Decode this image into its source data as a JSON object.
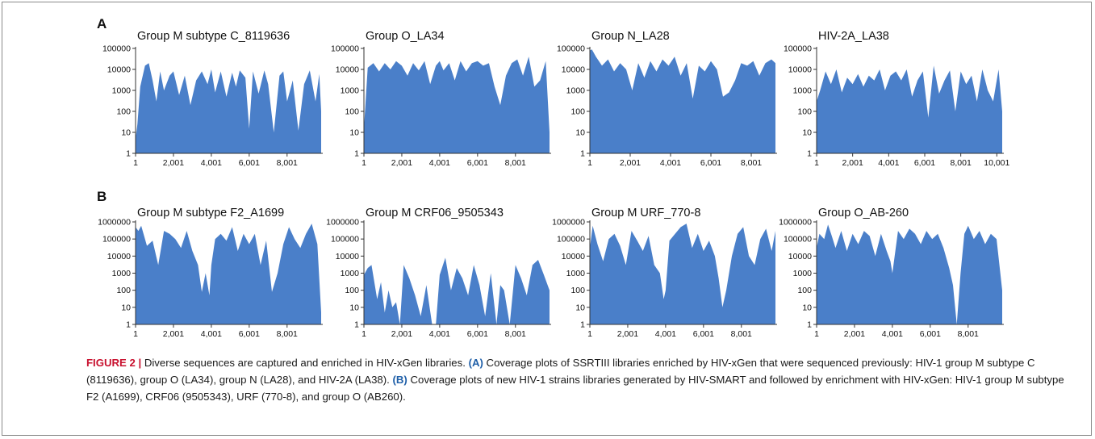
{
  "figure": {
    "caption": {
      "label": "FIGURE 2 |",
      "lead": " Diverse sequences are captured and enriched in HIV-xGen libraries. ",
      "ref_a": "(A)",
      "text_a": " Coverage plots of SSRTIII libraries enriched by HIV-xGen that were sequenced previously: HIV-1 group M subtype C (8119636), group O (LA34), group N (LA28), and HIV-2A (LA38). ",
      "ref_b": "(B)",
      "text_b": " Coverage plots of new HIV-1 strains libraries generated by HIV-SMART and followed by enrichment with HIV-xGen: HIV-1 group M subtype F2 (A1699), CRF06 (9505343), URF (770-8), and group O (AB260)."
    },
    "row_labels": [
      "A",
      "B"
    ]
  },
  "colors": {
    "fill": "#4a7fc9",
    "axis": "#333333",
    "text": "#111111"
  },
  "chart_data": [
    {
      "type": "area",
      "row": 0,
      "panel": "A",
      "title": "Group M subtype C_8119636",
      "yscale": "log",
      "ylim": [
        1,
        100000
      ],
      "yticks": [
        1,
        10,
        100,
        1000,
        10000,
        100000
      ],
      "xlim": [
        1,
        9800
      ],
      "xticks": [
        1,
        2001,
        4001,
        6001,
        8001
      ],
      "xticklabels": [
        "1",
        "2,001",
        "4,001",
        "6,001",
        "8,001"
      ],
      "x": [
        1,
        100,
        250,
        500,
        700,
        900,
        1100,
        1300,
        1500,
        1800,
        2000,
        2300,
        2600,
        2900,
        3200,
        3500,
        3800,
        4000,
        4200,
        4500,
        4800,
        5100,
        5300,
        5500,
        5800,
        6000,
        6200,
        6500,
        6800,
        7000,
        7300,
        7600,
        7800,
        8000,
        8300,
        8600,
        8900,
        9200,
        9500,
        9700,
        9800
      ],
      "y": [
        5,
        25,
        1500,
        15000,
        20000,
        3000,
        300,
        8000,
        1000,
        5000,
        8000,
        600,
        5000,
        200,
        3000,
        8000,
        2000,
        10000,
        800,
        8000,
        500,
        7000,
        1500,
        9000,
        4000,
        15,
        8000,
        700,
        9000,
        2000,
        10,
        5000,
        8000,
        300,
        3000,
        12,
        2000,
        9000,
        300,
        6000,
        100
      ]
    },
    {
      "type": "area",
      "row": 0,
      "panel": "A",
      "title": "Group O_LA34",
      "yscale": "log",
      "ylim": [
        1,
        100000
      ],
      "yticks": [
        1,
        10,
        100,
        1000,
        10000,
        100000
      ],
      "xlim": [
        1,
        9800
      ],
      "xticks": [
        1,
        2001,
        4001,
        6001,
        8001
      ],
      "xticklabels": [
        "1",
        "2,001",
        "4,001",
        "6,001",
        "8,001"
      ],
      "x": [
        1,
        200,
        500,
        800,
        1100,
        1400,
        1700,
        2000,
        2300,
        2600,
        2900,
        3200,
        3500,
        3800,
        4000,
        4200,
        4500,
        4800,
        5100,
        5400,
        5700,
        6000,
        6300,
        6600,
        6900,
        7200,
        7500,
        7800,
        8100,
        8400,
        8700,
        9000,
        9300,
        9600,
        9800
      ],
      "y": [
        15,
        12000,
        20000,
        8000,
        20000,
        10000,
        25000,
        15000,
        5000,
        20000,
        9000,
        25000,
        2000,
        15000,
        25000,
        9000,
        20000,
        3000,
        25000,
        8000,
        20000,
        25000,
        15000,
        20000,
        1500,
        200,
        5000,
        20000,
        30000,
        5000,
        40000,
        1500,
        3000,
        25000,
        10
      ]
    },
    {
      "type": "area",
      "row": 0,
      "panel": "A",
      "title": "Group N_LA28",
      "yscale": "log",
      "ylim": [
        1,
        100000
      ],
      "yticks": [
        1,
        10,
        100,
        1000,
        10000,
        100000
      ],
      "xlim": [
        1,
        9200
      ],
      "xticks": [
        1,
        2001,
        4001,
        6001,
        8001
      ],
      "xticklabels": [
        "1",
        "2,001",
        "4,001",
        "6,001",
        "8,001"
      ],
      "x": [
        1,
        100,
        300,
        600,
        900,
        1200,
        1500,
        1800,
        2100,
        2400,
        2700,
        3000,
        3300,
        3600,
        3900,
        4200,
        4500,
        4800,
        5100,
        5400,
        5700,
        6000,
        6300,
        6600,
        6900,
        7200,
        7500,
        7800,
        8100,
        8400,
        8700,
        9000,
        9200
      ],
      "y": [
        80000,
        90000,
        40000,
        15000,
        30000,
        8000,
        20000,
        10000,
        1000,
        20000,
        4000,
        25000,
        8000,
        30000,
        15000,
        40000,
        5000,
        20000,
        400,
        15000,
        8000,
        25000,
        10000,
        500,
        800,
        3000,
        20000,
        15000,
        25000,
        5000,
        20000,
        30000,
        20000
      ]
    },
    {
      "type": "area",
      "row": 0,
      "panel": "A",
      "title": "HIV-2A_LA38",
      "yscale": "log",
      "ylim": [
        1,
        100000
      ],
      "yticks": [
        1,
        10,
        100,
        1000,
        10000,
        100000
      ],
      "xlim": [
        1,
        10300
      ],
      "xticks": [
        1,
        2001,
        4001,
        6001,
        8001,
        10001
      ],
      "xticklabels": [
        "1",
        "2,001",
        "4,001",
        "6,001",
        "8,001",
        "10,001"
      ],
      "x": [
        1,
        200,
        500,
        800,
        1100,
        1400,
        1700,
        2000,
        2300,
        2600,
        2900,
        3200,
        3500,
        3800,
        4100,
        4400,
        4700,
        5000,
        5300,
        5600,
        5900,
        6200,
        6500,
        6800,
        7100,
        7400,
        7700,
        8000,
        8300,
        8600,
        8900,
        9200,
        9500,
        9800,
        10100,
        10300
      ],
      "y": [
        300,
        1000,
        8000,
        2000,
        10000,
        800,
        4000,
        2000,
        6000,
        1500,
        5000,
        3000,
        10000,
        1000,
        5000,
        8000,
        3000,
        10000,
        500,
        3000,
        8000,
        50,
        15000,
        700,
        3000,
        9000,
        100,
        8000,
        2000,
        5000,
        300,
        10000,
        1000,
        300,
        10000,
        100
      ]
    },
    {
      "type": "area",
      "row": 1,
      "panel": "B",
      "title": "Group M subtype F2_A1699",
      "yscale": "log",
      "ylim": [
        1,
        1000000
      ],
      "yticks": [
        1,
        10,
        100,
        1000,
        10000,
        100000,
        1000000
      ],
      "xlim": [
        1,
        9800
      ],
      "xticks": [
        1,
        2001,
        4001,
        6001,
        8001
      ],
      "xticklabels": [
        "1",
        "2,001",
        "4,001",
        "6,001",
        "8,001"
      ],
      "x": [
        1,
        150,
        300,
        600,
        900,
        1200,
        1500,
        1800,
        2100,
        2400,
        2700,
        3000,
        3300,
        3500,
        3700,
        3900,
        4000,
        4200,
        4500,
        4800,
        5100,
        5400,
        5700,
        6000,
        6300,
        6600,
        6900,
        7200,
        7500,
        7800,
        8100,
        8400,
        8700,
        9000,
        9300,
        9600,
        9800
      ],
      "y": [
        500000,
        300000,
        600000,
        40000,
        80000,
        3000,
        300000,
        200000,
        100000,
        30000,
        300000,
        20000,
        3000,
        80,
        1000,
        50,
        3000,
        100000,
        200000,
        80000,
        500000,
        20000,
        200000,
        50000,
        200000,
        3000,
        80000,
        80,
        1000,
        50000,
        500000,
        100000,
        30000,
        200000,
        800000,
        50000,
        5
      ]
    },
    {
      "type": "area",
      "row": 1,
      "panel": "B",
      "title": "Group M CRF06_9505343",
      "yscale": "log",
      "ylim": [
        1,
        1000000
      ],
      "yticks": [
        1,
        10,
        100,
        1000,
        10000,
        100000,
        1000000
      ],
      "xlim": [
        1,
        9800
      ],
      "xticks": [
        1,
        2001,
        4001,
        6001,
        8001
      ],
      "xticklabels": [
        "1",
        "2,001",
        "4,001",
        "6,001",
        "8,001"
      ],
      "x": [
        1,
        200,
        400,
        700,
        900,
        1100,
        1300,
        1500,
        1700,
        1900,
        2100,
        2400,
        2700,
        3000,
        3300,
        3600,
        3800,
        4000,
        4300,
        4600,
        4900,
        5200,
        5500,
        5800,
        6100,
        6400,
        6700,
        7000,
        7200,
        7400,
        7700,
        8000,
        8300,
        8600,
        8900,
        9200,
        9500,
        9800
      ],
      "y": [
        800,
        2000,
        3000,
        30,
        300,
        5,
        100,
        10,
        20,
        1,
        3000,
        500,
        50,
        3,
        200,
        1,
        1,
        800,
        8000,
        100,
        2000,
        500,
        50,
        3000,
        200,
        3,
        1000,
        1,
        200,
        100,
        1,
        3000,
        500,
        50,
        3000,
        6000,
        800,
        100
      ]
    },
    {
      "type": "area",
      "row": 1,
      "panel": "B",
      "title": "Group M URF_770-8",
      "yscale": "log",
      "ylim": [
        1,
        1000000
      ],
      "yticks": [
        1,
        10,
        100,
        1000,
        10000,
        100000,
        1000000
      ],
      "xlim": [
        1,
        9800
      ],
      "xticks": [
        1,
        2001,
        4001,
        6001,
        8001
      ],
      "xticklabels": [
        "1",
        "2,001",
        "4,001",
        "6,001",
        "8,001"
      ],
      "x": [
        1,
        150,
        400,
        700,
        1000,
        1300,
        1600,
        1900,
        2200,
        2500,
        2800,
        3100,
        3400,
        3700,
        3900,
        4000,
        4200,
        4500,
        4800,
        5100,
        5400,
        5700,
        6000,
        6300,
        6600,
        6800,
        7000,
        7200,
        7500,
        7800,
        8100,
        8400,
        8700,
        9000,
        9300,
        9600,
        9800
      ],
      "y": [
        30000,
        600000,
        50000,
        5000,
        100000,
        200000,
        40000,
        3000,
        300000,
        80000,
        20000,
        150000,
        3000,
        1000,
        30,
        100,
        80000,
        200000,
        500000,
        800000,
        30000,
        200000,
        20000,
        80000,
        10000,
        500,
        10,
        100,
        10000,
        200000,
        500000,
        10000,
        3000,
        100000,
        400000,
        20000,
        300000
      ]
    },
    {
      "type": "area",
      "row": 1,
      "panel": "B",
      "title": "Group O_AB-260",
      "yscale": "log",
      "ylim": [
        1,
        1000000
      ],
      "yticks": [
        1,
        10,
        100,
        1000,
        10000,
        100000,
        1000000
      ],
      "xlim": [
        1,
        9800
      ],
      "xticks": [
        1,
        2001,
        4001,
        6001,
        8001
      ],
      "xticklabels": [
        "1",
        "2,001",
        "4,001",
        "6,001",
        "8,001"
      ],
      "x": [
        1,
        150,
        400,
        600,
        800,
        1000,
        1300,
        1600,
        1900,
        2200,
        2500,
        2800,
        3100,
        3400,
        3700,
        3900,
        4000,
        4300,
        4600,
        4900,
        5200,
        5500,
        5800,
        6100,
        6400,
        6700,
        7000,
        7200,
        7400,
        7600,
        7800,
        8000,
        8300,
        8600,
        8900,
        9200,
        9500,
        9800
      ],
      "y": [
        30000,
        200000,
        100000,
        700000,
        150000,
        30000,
        300000,
        20000,
        200000,
        50000,
        300000,
        150000,
        10000,
        200000,
        20000,
        5000,
        1000,
        300000,
        100000,
        400000,
        200000,
        50000,
        300000,
        100000,
        200000,
        30000,
        2000,
        200,
        1,
        1000,
        200000,
        600000,
        100000,
        300000,
        50000,
        200000,
        100000,
        100
      ]
    }
  ]
}
